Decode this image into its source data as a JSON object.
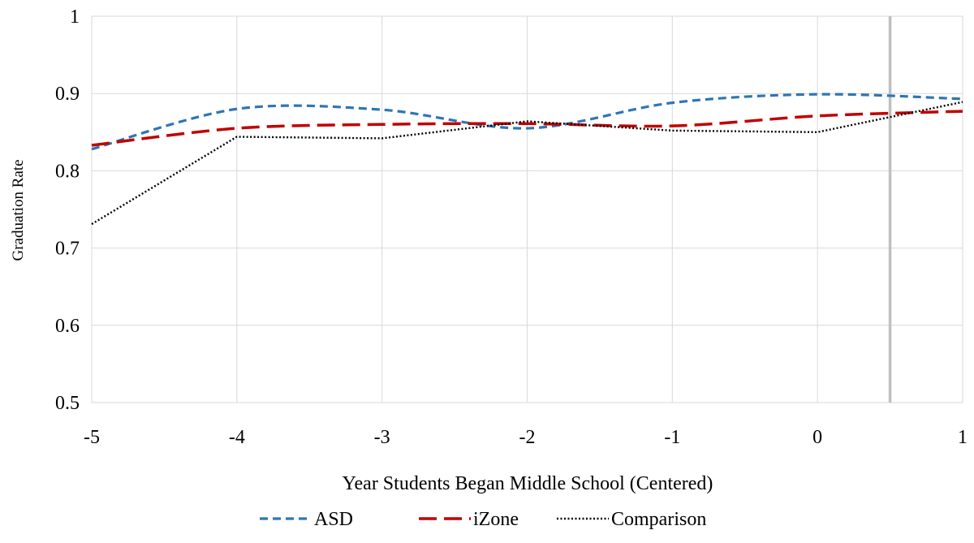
{
  "chart_data": {
    "type": "line",
    "xlabel": "Year Students Began Middle School (Centered)",
    "ylabel": "Graduation Rate",
    "xlim": [
      -5,
      1
    ],
    "ylim": [
      0.5,
      1
    ],
    "x_ticks": [
      -5,
      -4,
      -3,
      -2,
      -1,
      0,
      1
    ],
    "y_ticks": [
      0.5,
      0.6,
      0.7,
      0.8,
      0.9,
      1
    ],
    "x_tick_labels": [
      "-5",
      "-4",
      "-3",
      "-2",
      "-1",
      "0",
      "1"
    ],
    "y_tick_labels": [
      "0.5",
      "0.6",
      "0.7",
      "0.8",
      "0.9",
      "1"
    ],
    "grid": true,
    "reference_line_x": 0.5,
    "legend_position": "bottom",
    "x": [
      -5,
      -4,
      -3,
      -2,
      -1,
      0,
      1
    ],
    "series": [
      {
        "name": "ASD",
        "color": "#2E75B6",
        "dash": "dashed",
        "values": [
          0.828,
          0.88,
          0.879,
          0.855,
          0.888,
          0.899,
          0.893
        ]
      },
      {
        "name": "iZone",
        "color": "#C00000",
        "dash": "long-dashed",
        "values": [
          0.833,
          0.855,
          0.86,
          0.861,
          0.858,
          0.871,
          0.877
        ]
      },
      {
        "name": "Comparison",
        "color": "#000000",
        "dash": "dotted",
        "values": [
          0.731,
          0.844,
          0.842,
          0.864,
          0.852,
          0.85,
          0.889
        ]
      }
    ]
  }
}
